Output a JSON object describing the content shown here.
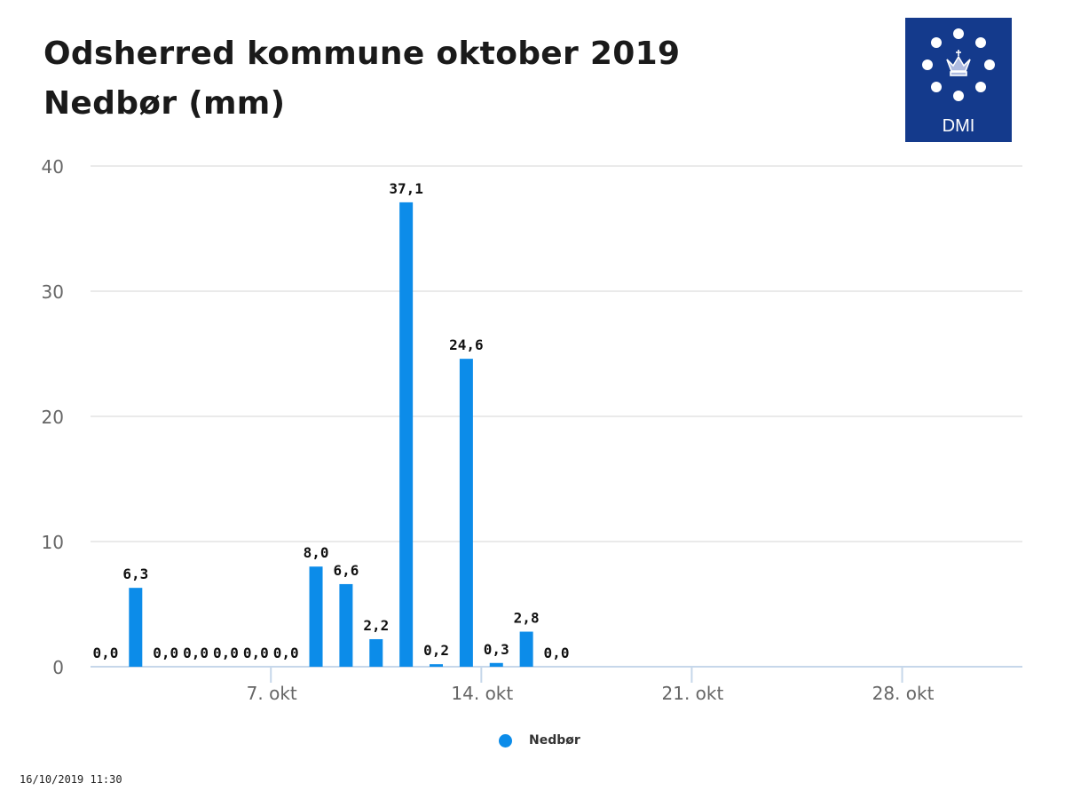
{
  "header": {
    "title_line1": "Odsherred kommune oktober 2019",
    "title_line2": "Nedbør (mm)"
  },
  "logo": {
    "text": "DMI",
    "icon": "crown-icon",
    "background": "#143a8c"
  },
  "chart_data": {
    "type": "bar",
    "title": "Odsherred kommune oktober 2019",
    "subtitle": "Nedbør (mm)",
    "x_type": "date",
    "x_range": [
      "2019-10-01",
      "2019-10-31"
    ],
    "x_ticks": [
      {
        "date": "2019-10-07",
        "label": "7. okt"
      },
      {
        "date": "2019-10-14",
        "label": "14. okt"
      },
      {
        "date": "2019-10-21",
        "label": "21. okt"
      },
      {
        "date": "2019-10-28",
        "label": "28. okt"
      }
    ],
    "ylim": [
      0,
      40
    ],
    "y_ticks": [
      0,
      10,
      20,
      30,
      40
    ],
    "grid": true,
    "legend_position": "bottom",
    "series": [
      {
        "name": "Nedbør",
        "color": "#0c8ce9",
        "points": [
          {
            "date": "2019-10-01",
            "value": 0.0,
            "label": "0,0"
          },
          {
            "date": "2019-10-02",
            "value": 6.3,
            "label": "6,3"
          },
          {
            "date": "2019-10-03",
            "value": 0.0,
            "label": "0,0"
          },
          {
            "date": "2019-10-04",
            "value": 0.0,
            "label": "0,0"
          },
          {
            "date": "2019-10-05",
            "value": 0.0,
            "label": "0,0"
          },
          {
            "date": "2019-10-06",
            "value": 0.0,
            "label": "0,0"
          },
          {
            "date": "2019-10-07",
            "value": 0.0,
            "label": "0,0"
          },
          {
            "date": "2019-10-08",
            "value": 8.0,
            "label": "8,0"
          },
          {
            "date": "2019-10-09",
            "value": 6.6,
            "label": "6,6"
          },
          {
            "date": "2019-10-10",
            "value": 2.2,
            "label": "2,2"
          },
          {
            "date": "2019-10-11",
            "value": 37.1,
            "label": "37,1"
          },
          {
            "date": "2019-10-12",
            "value": 0.2,
            "label": "0,2"
          },
          {
            "date": "2019-10-13",
            "value": 24.6,
            "label": "24,6"
          },
          {
            "date": "2019-10-14",
            "value": 0.3,
            "label": "0,3"
          },
          {
            "date": "2019-10-15",
            "value": 2.8,
            "label": "2,8"
          },
          {
            "date": "2019-10-16",
            "value": 0.0,
            "label": "0,0"
          }
        ]
      }
    ]
  },
  "footer": {
    "timestamp": "16/10/2019 11:30"
  }
}
